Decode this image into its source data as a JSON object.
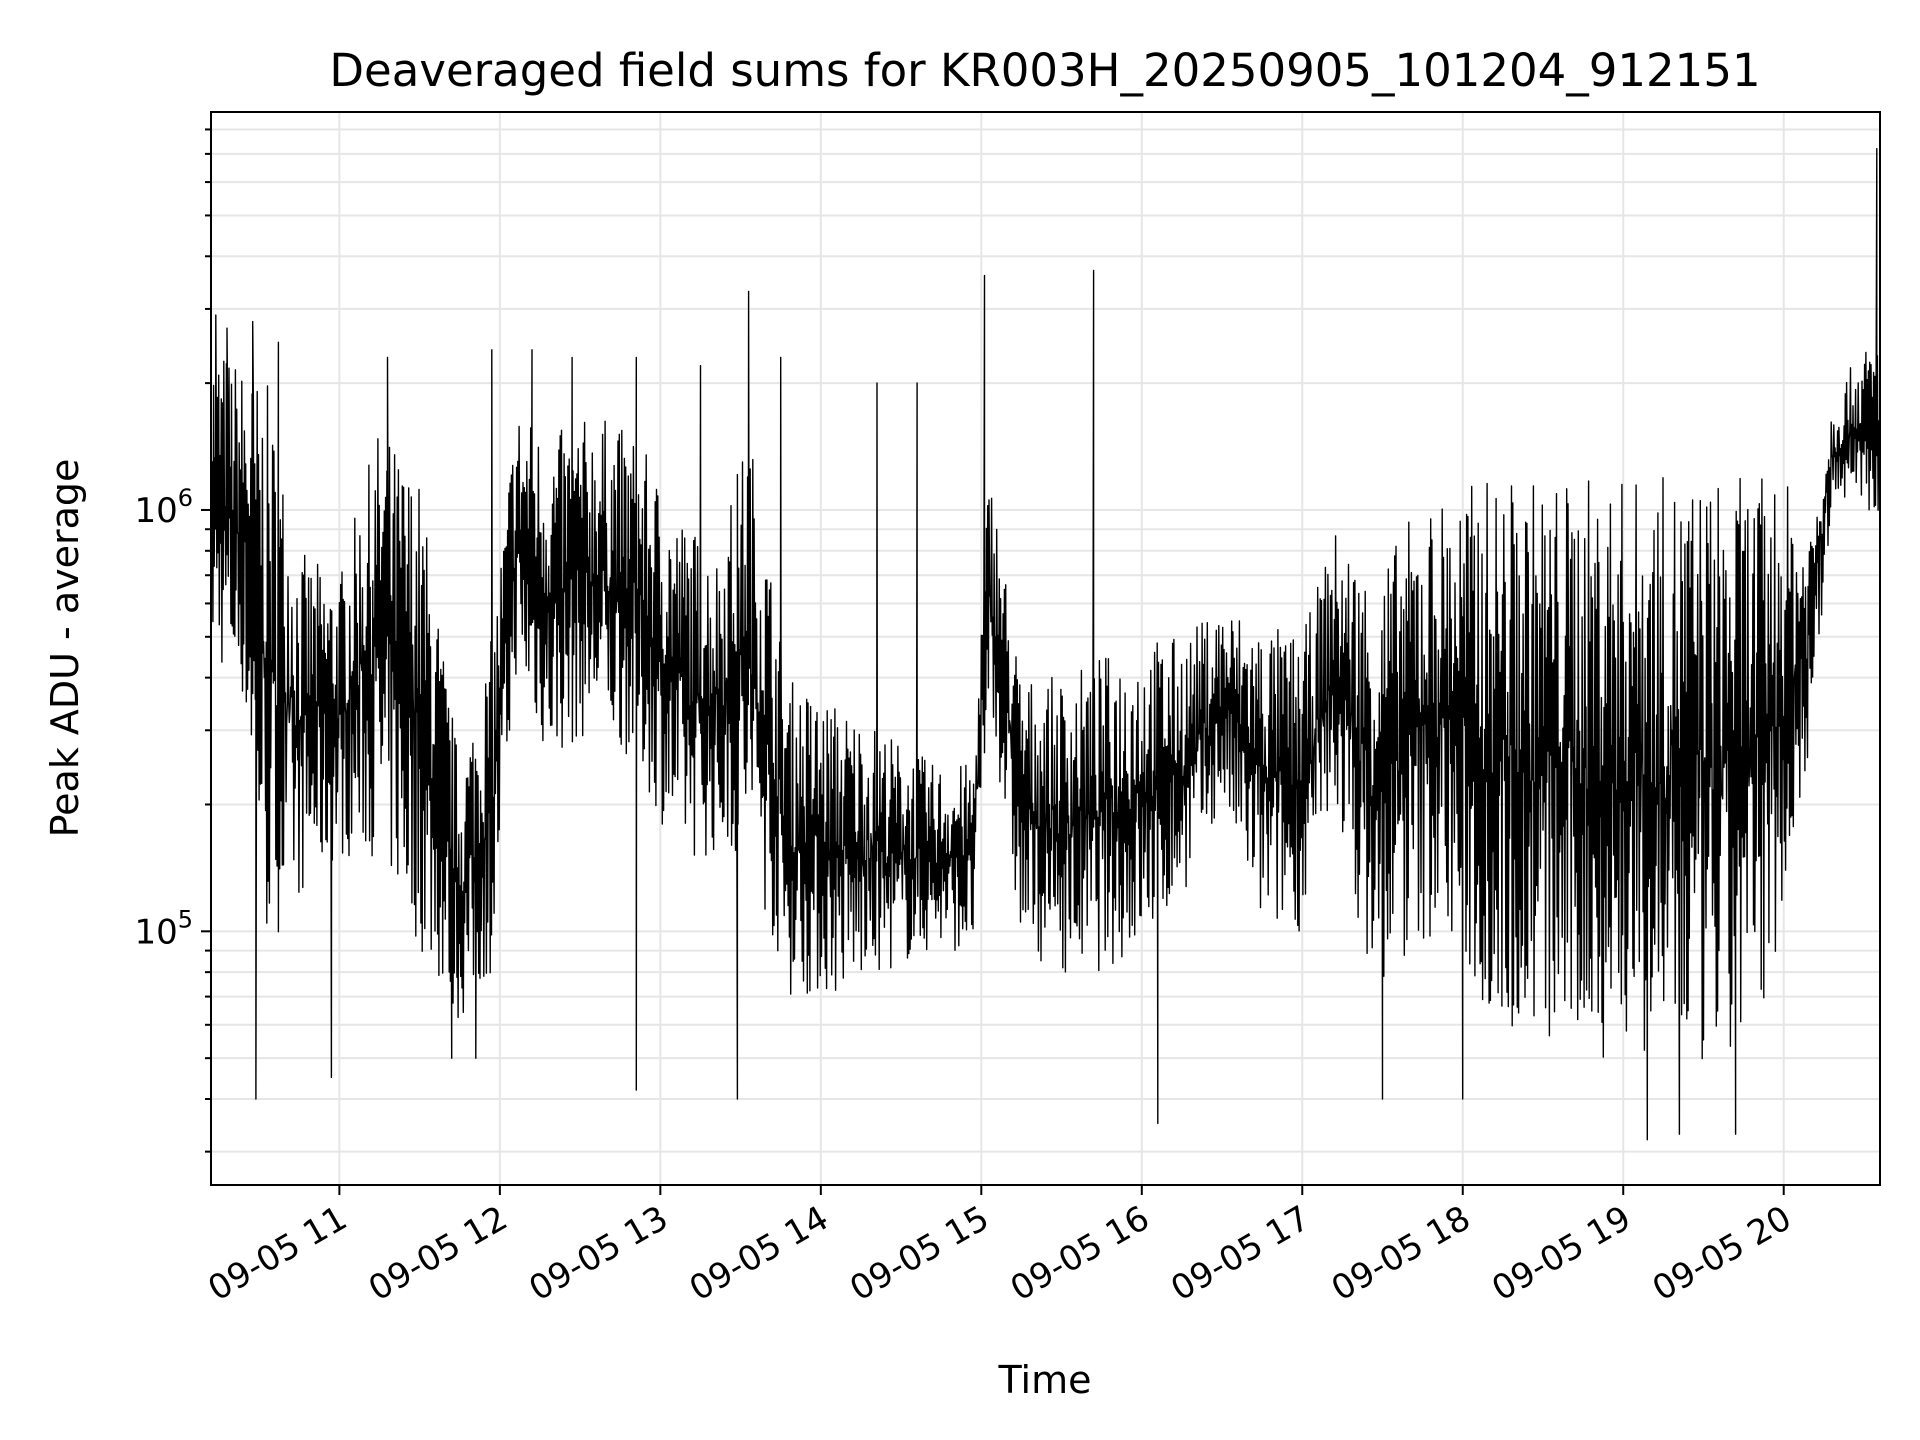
{
  "chart_data": {
    "type": "line",
    "title": "Deaveraged field sums for KR003H_20250905_101204_912151",
    "xlabel": "Time",
    "ylabel": "Peak ADU - average",
    "yscale": "log",
    "ylim": [
      25000,
      8800000
    ],
    "xlim_hours": [
      10.2,
      20.6
    ],
    "grid": true,
    "line_color": "#000000",
    "grid_color": "#e6e6e6",
    "x_ticks": [
      {
        "hour": 11,
        "label": "09-05 11"
      },
      {
        "hour": 12,
        "label": "09-05 12"
      },
      {
        "hour": 13,
        "label": "09-05 13"
      },
      {
        "hour": 14,
        "label": "09-05 14"
      },
      {
        "hour": 15,
        "label": "09-05 15"
      },
      {
        "hour": 16,
        "label": "09-05 16"
      },
      {
        "hour": 17,
        "label": "09-05 17"
      },
      {
        "hour": 18,
        "label": "09-05 18"
      },
      {
        "hour": 19,
        "label": "09-05 19"
      },
      {
        "hour": 20,
        "label": "09-05 20"
      }
    ],
    "y_ticks": [
      {
        "value": 100000,
        "base": "10",
        "exp": "5"
      },
      {
        "value": 1000000,
        "base": "10",
        "exp": "6"
      }
    ],
    "series": [
      {
        "envelope": [
          {
            "hour": 10.2,
            "low": 450000,
            "high": 2600000
          },
          {
            "hour": 10.4,
            "low": 350000,
            "high": 2200000
          },
          {
            "hour": 10.55,
            "low": 90000,
            "high": 2000000
          },
          {
            "hour": 10.75,
            "low": 120000,
            "high": 800000
          },
          {
            "hour": 11.0,
            "low": 150000,
            "high": 700000
          },
          {
            "hour": 11.25,
            "low": 150000,
            "high": 1600000
          },
          {
            "hour": 11.5,
            "low": 90000,
            "high": 1200000
          },
          {
            "hour": 11.75,
            "low": 60000,
            "high": 250000
          },
          {
            "hour": 11.95,
            "low": 80000,
            "high": 500000
          },
          {
            "hour": 12.1,
            "low": 400000,
            "high": 1800000
          },
          {
            "hour": 12.3,
            "low": 250000,
            "high": 1500000
          },
          {
            "hour": 12.6,
            "low": 300000,
            "high": 1700000
          },
          {
            "hour": 12.85,
            "low": 250000,
            "high": 1500000
          },
          {
            "hour": 13.1,
            "low": 150000,
            "high": 1000000
          },
          {
            "hour": 13.35,
            "low": 150000,
            "high": 800000
          },
          {
            "hour": 13.55,
            "low": 150000,
            "high": 1600000
          },
          {
            "hour": 13.8,
            "low": 70000,
            "high": 400000
          },
          {
            "hour": 14.1,
            "low": 70000,
            "high": 350000
          },
          {
            "hour": 14.4,
            "low": 80000,
            "high": 300000
          },
          {
            "hour": 14.7,
            "low": 90000,
            "high": 250000
          },
          {
            "hour": 14.95,
            "low": 90000,
            "high": 250000
          },
          {
            "hour": 15.05,
            "low": 350000,
            "high": 1300000
          },
          {
            "hour": 15.25,
            "low": 90000,
            "high": 400000
          },
          {
            "hour": 15.5,
            "low": 80000,
            "high": 400000
          },
          {
            "hour": 15.75,
            "low": 80000,
            "high": 450000
          },
          {
            "hour": 16.0,
            "low": 90000,
            "high": 500000
          },
          {
            "hour": 16.25,
            "low": 120000,
            "high": 500000
          },
          {
            "hour": 16.5,
            "low": 200000,
            "high": 600000
          },
          {
            "hour": 16.75,
            "low": 100000,
            "high": 550000
          },
          {
            "hour": 17.0,
            "low": 100000,
            "high": 500000
          },
          {
            "hour": 17.2,
            "low": 200000,
            "high": 900000
          },
          {
            "hour": 17.45,
            "low": 70000,
            "high": 700000
          },
          {
            "hour": 17.7,
            "low": 90000,
            "high": 1000000
          },
          {
            "hour": 17.9,
            "low": 100000,
            "high": 1100000
          },
          {
            "hour": 18.15,
            "low": 60000,
            "high": 1200000
          },
          {
            "hour": 18.4,
            "low": 55000,
            "high": 1200000
          },
          {
            "hour": 18.65,
            "low": 50000,
            "high": 1200000
          },
          {
            "hour": 18.9,
            "low": 50000,
            "high": 1200000
          },
          {
            "hour": 19.15,
            "low": 50000,
            "high": 1200000
          },
          {
            "hour": 19.4,
            "low": 45000,
            "high": 1200000
          },
          {
            "hour": 19.65,
            "low": 45000,
            "high": 1200000
          },
          {
            "hour": 19.85,
            "low": 60000,
            "high": 1200000
          },
          {
            "hour": 20.0,
            "low": 110000,
            "high": 1200000
          },
          {
            "hour": 20.15,
            "low": 250000,
            "high": 900000
          },
          {
            "hour": 20.3,
            "low": 1000000,
            "high": 1800000
          },
          {
            "hour": 20.45,
            "low": 1100000,
            "high": 2300000
          },
          {
            "hour": 20.58,
            "low": 900000,
            "high": 2600000
          }
        ],
        "spikes": [
          {
            "hour": 10.23,
            "value": 2900000
          },
          {
            "hour": 10.3,
            "value": 2700000
          },
          {
            "hour": 10.46,
            "value": 2800000
          },
          {
            "hour": 10.48,
            "value": 40000
          },
          {
            "hour": 10.62,
            "value": 2500000
          },
          {
            "hour": 10.95,
            "value": 45000
          },
          {
            "hour": 11.3,
            "value": 2300000
          },
          {
            "hour": 11.7,
            "value": 50000
          },
          {
            "hour": 11.85,
            "value": 50000
          },
          {
            "hour": 11.95,
            "value": 2400000
          },
          {
            "hour": 12.2,
            "value": 2400000
          },
          {
            "hour": 12.45,
            "value": 2300000
          },
          {
            "hour": 12.85,
            "value": 2300000
          },
          {
            "hour": 12.85,
            "value": 42000
          },
          {
            "hour": 13.25,
            "value": 2200000
          },
          {
            "hour": 13.48,
            "value": 40000
          },
          {
            "hour": 13.55,
            "value": 3300000
          },
          {
            "hour": 13.75,
            "value": 2300000
          },
          {
            "hour": 14.35,
            "value": 2000000
          },
          {
            "hour": 14.6,
            "value": 2000000
          },
          {
            "hour": 15.02,
            "value": 3600000
          },
          {
            "hour": 15.7,
            "value": 3700000
          },
          {
            "hour": 16.1,
            "value": 35000
          },
          {
            "hour": 17.5,
            "value": 40000
          },
          {
            "hour": 18.0,
            "value": 40000
          },
          {
            "hour": 19.15,
            "value": 32000
          },
          {
            "hour": 19.35,
            "value": 33000
          },
          {
            "hour": 19.7,
            "value": 33000
          },
          {
            "hour": 20.58,
            "value": 7200000
          }
        ]
      }
    ]
  }
}
